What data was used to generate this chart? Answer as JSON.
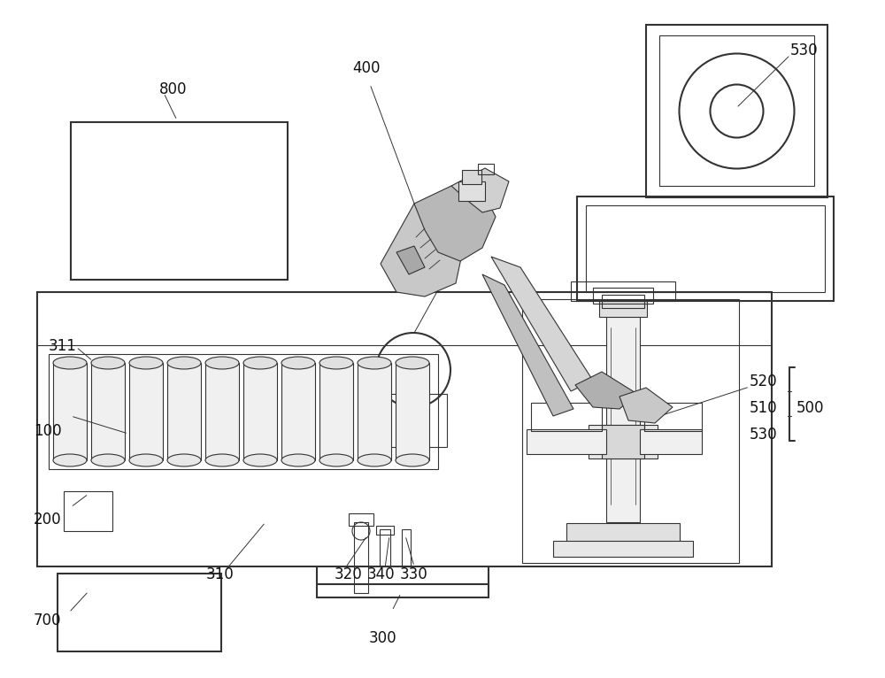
{
  "background_color": "#ffffff",
  "line_color": "#333333",
  "lw_main": 1.5,
  "lw_thin": 0.8,
  "lw_ann": 0.7,
  "fig_width": 10.0,
  "fig_height": 7.66,
  "dpi": 100
}
